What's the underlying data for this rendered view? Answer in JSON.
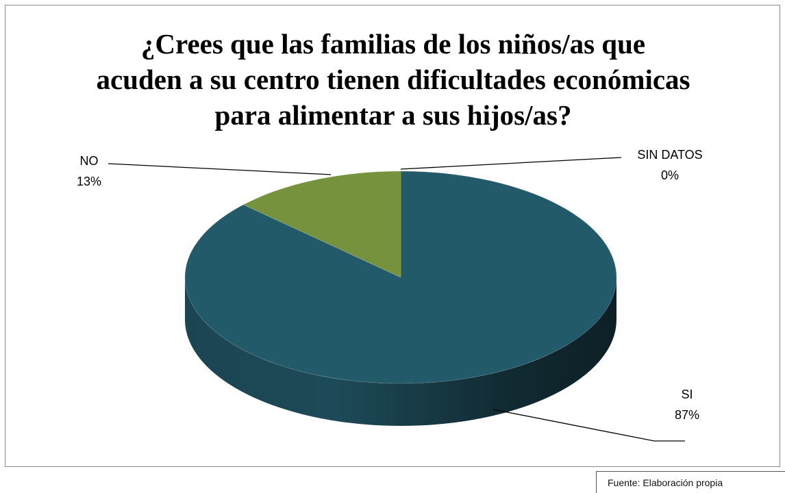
{
  "chart_data": {
    "type": "pie",
    "title": "¿Crees que las familias de los niños/as que\nacuden a su centro tienen dificultades económicas\npara alimentar a sus hijos/as?",
    "three_d": true,
    "slices": [
      {
        "name": "SI",
        "value": 87,
        "label": "87%",
        "color": "#235a6a"
      },
      {
        "name": "NO",
        "value": 13,
        "label": "13%",
        "color": "#77923c"
      },
      {
        "name": "SIN DATOS",
        "value": 0,
        "label": "0%",
        "color": "#8c3a3a"
      }
    ]
  },
  "source": "Fuente: Elaboración propia"
}
